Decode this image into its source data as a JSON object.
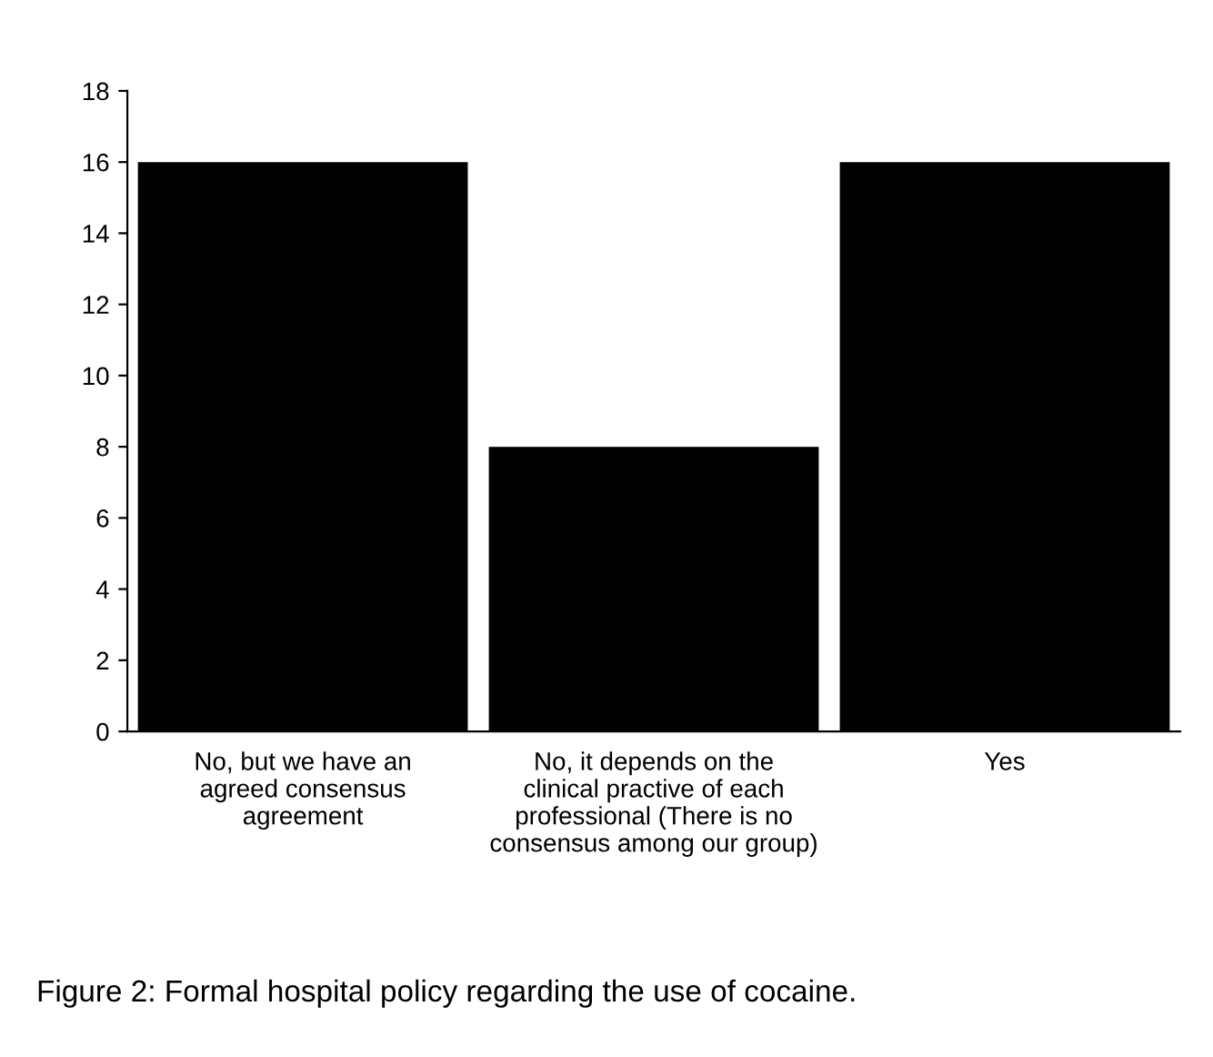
{
  "chart_data": {
    "type": "bar",
    "categories": [
      "No, but we have an\nagreed consensus\nagreement",
      "No, it depends on the\nclinical practive of each\nprofessional (There is no\nconsensus among our group)",
      "Yes"
    ],
    "values": [
      16,
      8,
      16
    ],
    "color": "#000000",
    "ylim": [
      0,
      18
    ],
    "yticks": [
      0,
      2,
      4,
      6,
      8,
      10,
      12,
      14,
      16,
      18
    ],
    "grid": false,
    "annotations": [
      "Figure 2: Formal hospital policy regarding the use of cocaine."
    ]
  }
}
